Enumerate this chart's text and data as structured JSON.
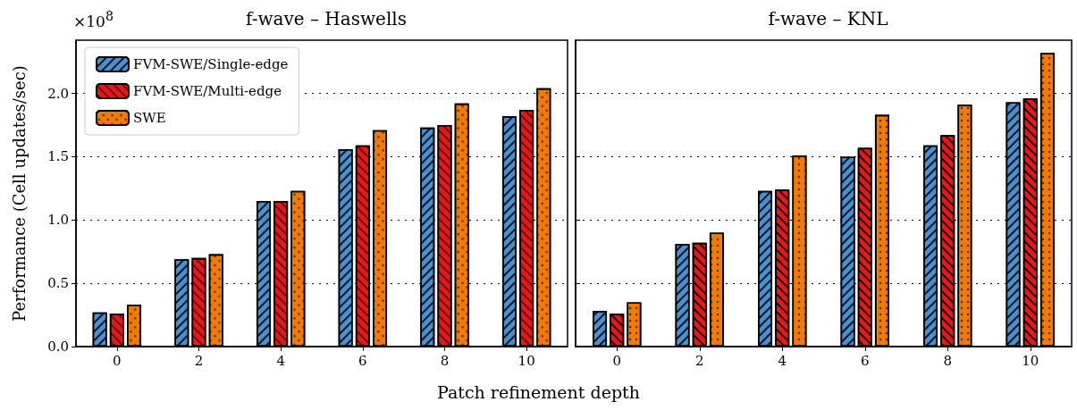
{
  "chart_data": [
    {
      "type": "bar",
      "title": "f-wave – Haswells",
      "xlabel": "Patch refinement depth",
      "ylabel": "Performance (Cell updates/sec)",
      "annotations": [
        "×10$^{8}$"
      ],
      "categories": [
        "0",
        "2",
        "4",
        "6",
        "8",
        "10"
      ],
      "series": [
        {
          "name": "FVM-SWE/Single-edge",
          "color": "#4a8fcf",
          "values": [
            0.27,
            0.69,
            1.15,
            1.56,
            1.73,
            1.82
          ]
        },
        {
          "name": "FVM-SWE/Multi-edge",
          "color": "#e31a1c",
          "values": [
            0.26,
            0.7,
            1.15,
            1.59,
            1.75,
            1.87
          ]
        },
        {
          "name": "SWE",
          "color": "#f07b00",
          "values": [
            0.33,
            0.73,
            1.23,
            1.71,
            1.92,
            2.04
          ]
        }
      ],
      "ylim": [
        0,
        2.42
      ],
      "yticks": [
        {
          "value": 0,
          "label": "0.0"
        },
        {
          "value": 0.5,
          "label": "0.5"
        },
        {
          "value": 1,
          "label": "1.0"
        },
        {
          "value": 1.5,
          "label": "1.5"
        },
        {
          "value": 2,
          "label": "2.0"
        }
      ],
      "grid": "y",
      "legend": "top left"
    },
    {
      "type": "bar",
      "title": "f-wave – KNL",
      "categories": [
        "0",
        "2",
        "4",
        "6",
        "8",
        "10"
      ],
      "series": [
        {
          "color": "#4a8fcf",
          "values": [
            0.28,
            0.81,
            1.23,
            1.5,
            1.59,
            1.93
          ]
        },
        {
          "color": "#e31a1c",
          "values": [
            0.26,
            0.82,
            1.24,
            1.57,
            1.67,
            1.96
          ]
        },
        {
          "color": "#f07b00",
          "values": [
            0.35,
            0.9,
            1.51,
            1.83,
            1.91,
            2.32
          ]
        }
      ],
      "ylim": [
        0,
        2.42
      ],
      "yticks": [
        0,
        0.5,
        1,
        1.5,
        2
      ],
      "grid": "y",
      "tick_labels": "x"
    }
  ]
}
